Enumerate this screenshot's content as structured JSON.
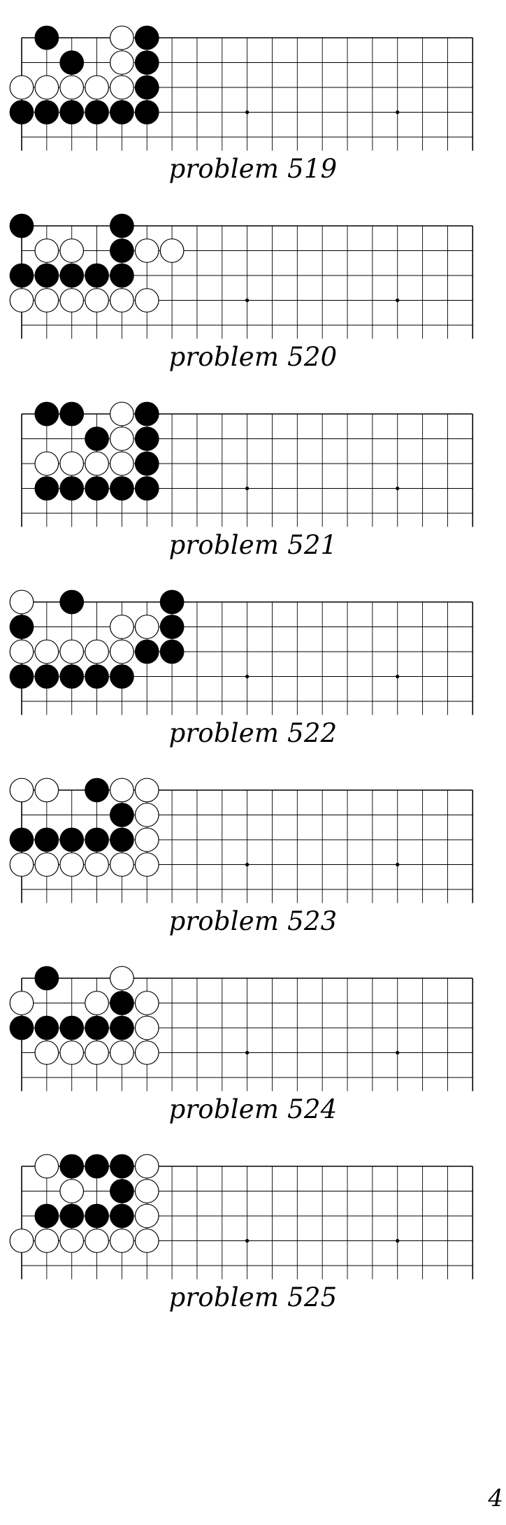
{
  "board": {
    "columns": 19,
    "rows_shown": 5,
    "line_color": "#000000",
    "black_stone": "#000000",
    "white_stone": "#ffffff",
    "star_points": [
      [
        9,
        3
      ],
      [
        15,
        3
      ]
    ]
  },
  "problems": [
    {
      "caption": "problem 519",
      "black": [
        [
          1,
          0
        ],
        [
          5,
          0
        ],
        [
          2,
          1
        ],
        [
          5,
          1
        ],
        [
          5,
          2
        ],
        [
          0,
          3
        ],
        [
          1,
          3
        ],
        [
          2,
          3
        ],
        [
          3,
          3
        ],
        [
          4,
          3
        ],
        [
          5,
          3
        ]
      ],
      "white": [
        [
          4,
          0
        ],
        [
          4,
          1
        ],
        [
          0,
          2
        ],
        [
          1,
          2
        ],
        [
          2,
          2
        ],
        [
          3,
          2
        ],
        [
          4,
          2
        ]
      ]
    },
    {
      "caption": "problem 520",
      "black": [
        [
          0,
          0
        ],
        [
          4,
          0
        ],
        [
          4,
          1
        ],
        [
          0,
          2
        ],
        [
          1,
          2
        ],
        [
          2,
          2
        ],
        [
          3,
          2
        ],
        [
          4,
          2
        ]
      ],
      "white": [
        [
          1,
          1
        ],
        [
          2,
          1
        ],
        [
          5,
          1
        ],
        [
          6,
          1
        ],
        [
          0,
          3
        ],
        [
          1,
          3
        ],
        [
          2,
          3
        ],
        [
          3,
          3
        ],
        [
          4,
          3
        ],
        [
          5,
          3
        ]
      ]
    },
    {
      "caption": "problem 521",
      "black": [
        [
          1,
          0
        ],
        [
          2,
          0
        ],
        [
          5,
          0
        ],
        [
          3,
          1
        ],
        [
          5,
          1
        ],
        [
          5,
          2
        ],
        [
          1,
          3
        ],
        [
          2,
          3
        ],
        [
          3,
          3
        ],
        [
          4,
          3
        ],
        [
          5,
          3
        ]
      ],
      "white": [
        [
          4,
          0
        ],
        [
          4,
          1
        ],
        [
          1,
          2
        ],
        [
          2,
          2
        ],
        [
          3,
          2
        ],
        [
          4,
          2
        ]
      ]
    },
    {
      "caption": "problem 522",
      "black": [
        [
          2,
          0
        ],
        [
          6,
          0
        ],
        [
          0,
          1
        ],
        [
          6,
          1
        ],
        [
          5,
          2
        ],
        [
          6,
          2
        ],
        [
          0,
          3
        ],
        [
          1,
          3
        ],
        [
          2,
          3
        ],
        [
          3,
          3
        ],
        [
          4,
          3
        ]
      ],
      "white": [
        [
          0,
          0
        ],
        [
          4,
          1
        ],
        [
          5,
          1
        ],
        [
          0,
          2
        ],
        [
          1,
          2
        ],
        [
          2,
          2
        ],
        [
          3,
          2
        ],
        [
          4,
          2
        ]
      ]
    },
    {
      "caption": "problem 523",
      "black": [
        [
          3,
          0
        ],
        [
          4,
          1
        ],
        [
          0,
          2
        ],
        [
          1,
          2
        ],
        [
          2,
          2
        ],
        [
          3,
          2
        ],
        [
          4,
          2
        ]
      ],
      "white": [
        [
          0,
          0
        ],
        [
          1,
          0
        ],
        [
          4,
          0
        ],
        [
          5,
          0
        ],
        [
          5,
          1
        ],
        [
          5,
          2
        ],
        [
          0,
          3
        ],
        [
          1,
          3
        ],
        [
          2,
          3
        ],
        [
          3,
          3
        ],
        [
          4,
          3
        ],
        [
          5,
          3
        ]
      ]
    },
    {
      "caption": "problem 524",
      "black": [
        [
          1,
          0
        ],
        [
          4,
          1
        ],
        [
          0,
          2
        ],
        [
          1,
          2
        ],
        [
          2,
          2
        ],
        [
          3,
          2
        ],
        [
          4,
          2
        ]
      ],
      "white": [
        [
          4,
          0
        ],
        [
          0,
          1
        ],
        [
          3,
          1
        ],
        [
          5,
          1
        ],
        [
          5,
          2
        ],
        [
          1,
          3
        ],
        [
          2,
          3
        ],
        [
          3,
          3
        ],
        [
          4,
          3
        ],
        [
          5,
          3
        ]
      ]
    },
    {
      "caption": "problem 525",
      "black": [
        [
          2,
          0
        ],
        [
          3,
          0
        ],
        [
          4,
          0
        ],
        [
          4,
          1
        ],
        [
          1,
          2
        ],
        [
          2,
          2
        ],
        [
          3,
          2
        ],
        [
          4,
          2
        ]
      ],
      "white": [
        [
          1,
          0
        ],
        [
          5,
          0
        ],
        [
          2,
          1
        ],
        [
          5,
          1
        ],
        [
          5,
          2
        ],
        [
          0,
          3
        ],
        [
          1,
          3
        ],
        [
          2,
          3
        ],
        [
          3,
          3
        ],
        [
          4,
          3
        ],
        [
          5,
          3
        ]
      ]
    }
  ],
  "page_number": "4"
}
